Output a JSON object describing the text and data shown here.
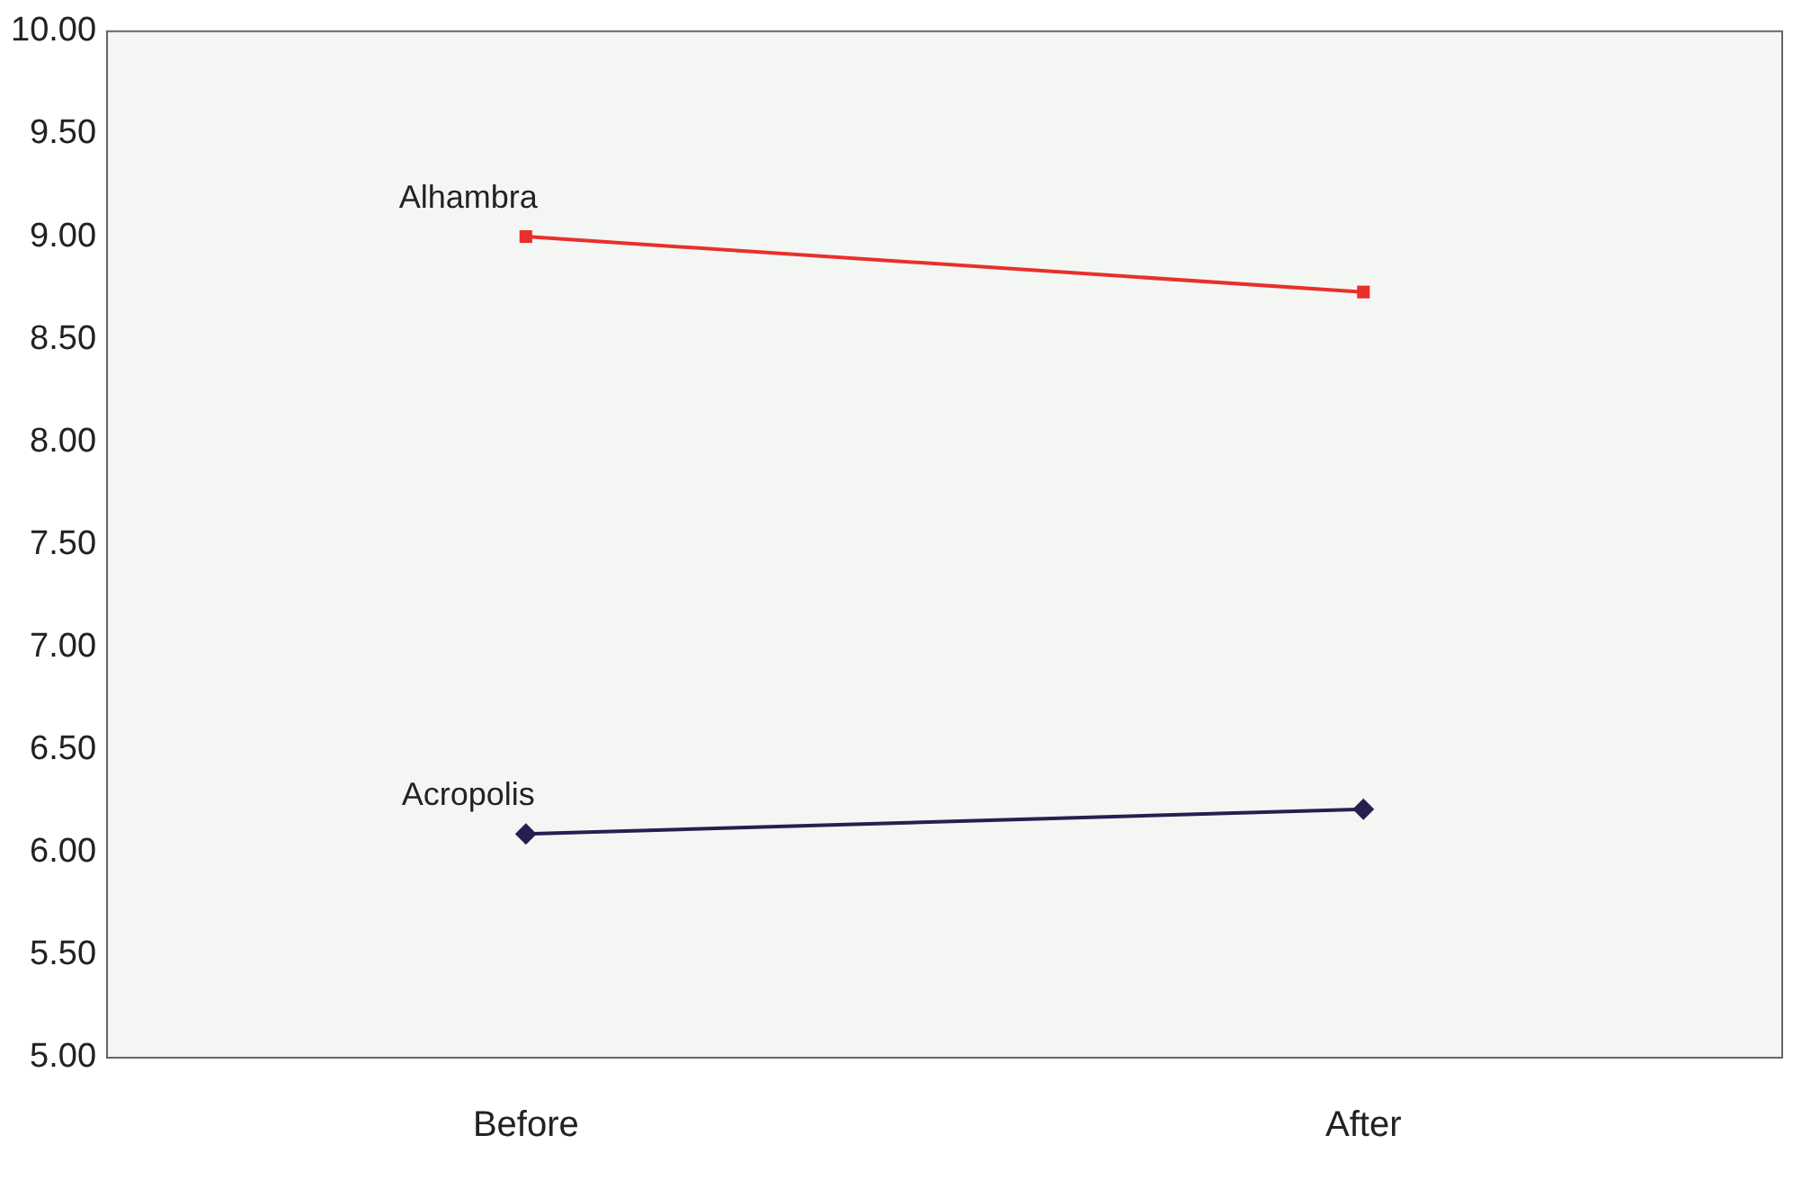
{
  "chart_data": {
    "type": "line",
    "categories": [
      "Before",
      "After"
    ],
    "series": [
      {
        "name": "Alhambra",
        "color": "#e8302a",
        "values": [
          9.0,
          8.73
        ],
        "marker": "square"
      },
      {
        "name": "Acropolis",
        "color": "#262050",
        "values": [
          6.09,
          6.21
        ],
        "marker": "diamond"
      }
    ],
    "ylim": [
      5,
      10
    ],
    "yticks": [
      {
        "value": 5,
        "label": "5.00"
      },
      {
        "value": 5.5,
        "label": "5.50"
      },
      {
        "value": 6,
        "label": "6.00"
      },
      {
        "value": 6.5,
        "label": "6.50"
      },
      {
        "value": 7,
        "label": "7.00"
      },
      {
        "value": 7.5,
        "label": "7.50"
      },
      {
        "value": 8,
        "label": "8.00"
      },
      {
        "value": 8.5,
        "label": "8.50"
      },
      {
        "value": 9,
        "label": "9.00"
      },
      {
        "value": 9.5,
        "label": "9.50"
      },
      {
        "value": 10,
        "label": "10.00"
      }
    ],
    "grid": false,
    "legend": false
  }
}
